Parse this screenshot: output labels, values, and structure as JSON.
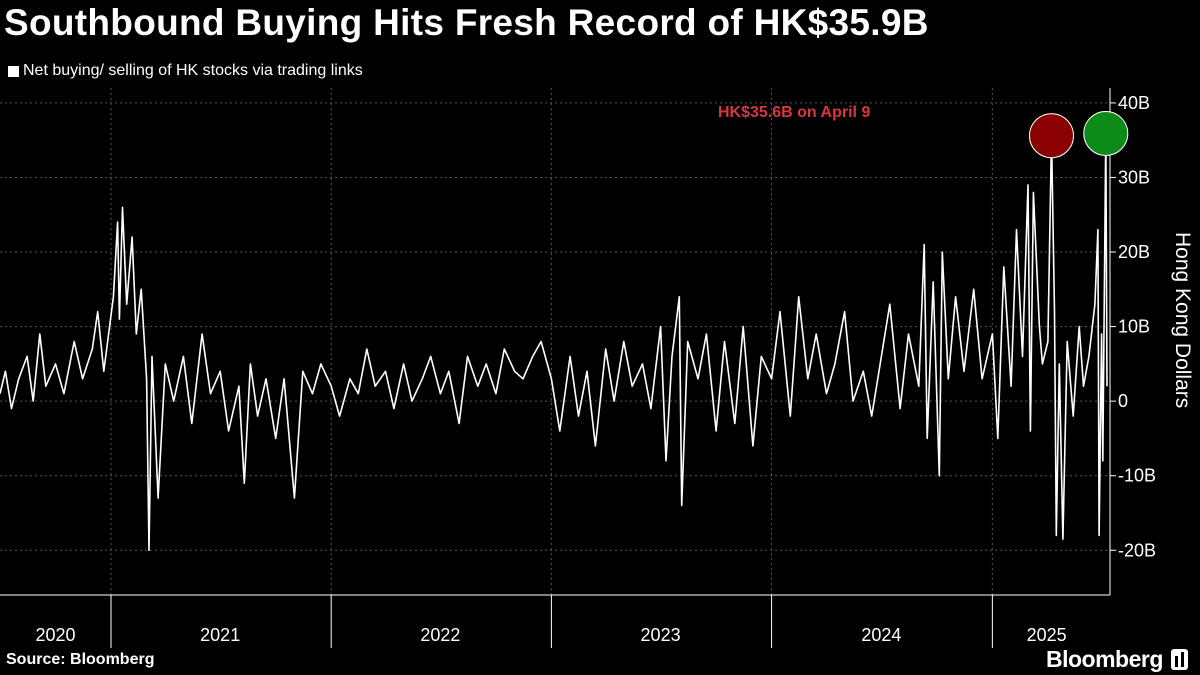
{
  "title": "Southbound Buying Hits Fresh Record of HK$35.9B",
  "source": "Source: Bloomberg",
  "brand": "Bloomberg",
  "colors": {
    "background": "#000000",
    "series": "#ffffff",
    "grid": "#555555",
    "marker_prev": "#8b0000",
    "marker_new": "#0d8a17",
    "annotation": "#d9363e"
  },
  "chart_data": {
    "type": "line",
    "legend": {
      "placement": "top-left",
      "entries": [
        "Net buying/ selling of HK stocks via trading links"
      ]
    },
    "ylabel": "Hong Kong Dollars",
    "y_unit": "HK$ billions",
    "ylim": [
      -26,
      42
    ],
    "yticks": [
      -20,
      -10,
      0,
      10,
      20,
      30,
      40
    ],
    "ytick_labels": [
      "-20B",
      "-10B",
      "0",
      "10B",
      "20B",
      "30B",
      "40B"
    ],
    "xlim": [
      "2020-07-01",
      "2025-07-15"
    ],
    "year_boundaries": [
      "2021-01-01",
      "2022-01-01",
      "2023-01-01",
      "2024-01-01",
      "2025-01-01"
    ],
    "x_tick_labels": [
      {
        "label": "2020",
        "date": "2020-10-01"
      },
      {
        "label": "2021",
        "date": "2021-07-01"
      },
      {
        "label": "2022",
        "date": "2022-07-01"
      },
      {
        "label": "2023",
        "date": "2023-07-01"
      },
      {
        "label": "2024",
        "date": "2024-07-01"
      },
      {
        "label": "2025",
        "date": "2025-04-01"
      }
    ],
    "grid": true,
    "series": [
      {
        "name": "Net buying/ selling of HK stocks via trading links",
        "points": [
          [
            "2020-07-01",
            1
          ],
          [
            "2020-07-10",
            4
          ],
          [
            "2020-07-20",
            -1
          ],
          [
            "2020-08-01",
            3
          ],
          [
            "2020-08-15",
            6
          ],
          [
            "2020-08-25",
            0
          ],
          [
            "2020-09-05",
            9
          ],
          [
            "2020-09-15",
            2
          ],
          [
            "2020-10-01",
            5
          ],
          [
            "2020-10-15",
            1
          ],
          [
            "2020-11-01",
            8
          ],
          [
            "2020-11-15",
            3
          ],
          [
            "2020-12-01",
            7
          ],
          [
            "2020-12-10",
            12
          ],
          [
            "2020-12-20",
            4
          ],
          [
            "2021-01-05",
            14
          ],
          [
            "2021-01-12",
            24
          ],
          [
            "2021-01-15",
            11
          ],
          [
            "2021-01-20",
            26
          ],
          [
            "2021-01-27",
            13
          ],
          [
            "2021-02-05",
            22
          ],
          [
            "2021-02-12",
            9
          ],
          [
            "2021-02-20",
            15
          ],
          [
            "2021-03-01",
            3
          ],
          [
            "2021-03-05",
            -20
          ],
          [
            "2021-03-10",
            6
          ],
          [
            "2021-03-20",
            -13
          ],
          [
            "2021-04-01",
            5
          ],
          [
            "2021-04-15",
            0
          ],
          [
            "2021-05-01",
            6
          ],
          [
            "2021-05-15",
            -3
          ],
          [
            "2021-06-01",
            9
          ],
          [
            "2021-06-15",
            1
          ],
          [
            "2021-07-01",
            4
          ],
          [
            "2021-07-15",
            -4
          ],
          [
            "2021-08-01",
            2
          ],
          [
            "2021-08-10",
            -11
          ],
          [
            "2021-08-20",
            5
          ],
          [
            "2021-09-01",
            -2
          ],
          [
            "2021-09-15",
            3
          ],
          [
            "2021-10-01",
            -5
          ],
          [
            "2021-10-15",
            3
          ],
          [
            "2021-11-01",
            -13
          ],
          [
            "2021-11-15",
            4
          ],
          [
            "2021-12-01",
            1
          ],
          [
            "2021-12-15",
            5
          ],
          [
            "2022-01-01",
            2
          ],
          [
            "2022-01-15",
            -2
          ],
          [
            "2022-02-01",
            3
          ],
          [
            "2022-02-15",
            1
          ],
          [
            "2022-03-01",
            7
          ],
          [
            "2022-03-15",
            2
          ],
          [
            "2022-04-01",
            4
          ],
          [
            "2022-04-15",
            -1
          ],
          [
            "2022-05-01",
            5
          ],
          [
            "2022-05-15",
            0
          ],
          [
            "2022-06-01",
            3
          ],
          [
            "2022-06-15",
            6
          ],
          [
            "2022-07-01",
            1
          ],
          [
            "2022-07-15",
            4
          ],
          [
            "2022-08-01",
            -3
          ],
          [
            "2022-08-15",
            6
          ],
          [
            "2022-09-01",
            2
          ],
          [
            "2022-09-15",
            5
          ],
          [
            "2022-10-01",
            1
          ],
          [
            "2022-10-15",
            7
          ],
          [
            "2022-11-01",
            4
          ],
          [
            "2022-11-15",
            3
          ],
          [
            "2022-12-01",
            6
          ],
          [
            "2022-12-15",
            8
          ],
          [
            "2023-01-01",
            3
          ],
          [
            "2023-01-15",
            -4
          ],
          [
            "2023-02-01",
            6
          ],
          [
            "2023-02-15",
            -2
          ],
          [
            "2023-03-01",
            4
          ],
          [
            "2023-03-15",
            -6
          ],
          [
            "2023-04-01",
            7
          ],
          [
            "2023-04-15",
            0
          ],
          [
            "2023-05-01",
            8
          ],
          [
            "2023-05-15",
            2
          ],
          [
            "2023-06-01",
            5
          ],
          [
            "2023-06-15",
            -1
          ],
          [
            "2023-07-01",
            10
          ],
          [
            "2023-07-10",
            -8
          ],
          [
            "2023-07-20",
            6
          ],
          [
            "2023-08-01",
            14
          ],
          [
            "2023-08-05",
            -14
          ],
          [
            "2023-08-15",
            8
          ],
          [
            "2023-09-01",
            3
          ],
          [
            "2023-09-15",
            9
          ],
          [
            "2023-10-01",
            -4
          ],
          [
            "2023-10-15",
            8
          ],
          [
            "2023-11-01",
            -3
          ],
          [
            "2023-11-15",
            10
          ],
          [
            "2023-12-01",
            -6
          ],
          [
            "2023-12-15",
            6
          ],
          [
            "2024-01-01",
            3
          ],
          [
            "2024-01-15",
            12
          ],
          [
            "2024-02-01",
            -2
          ],
          [
            "2024-02-15",
            14
          ],
          [
            "2024-03-01",
            3
          ],
          [
            "2024-03-15",
            9
          ],
          [
            "2024-04-01",
            1
          ],
          [
            "2024-04-15",
            5
          ],
          [
            "2024-05-01",
            12
          ],
          [
            "2024-05-15",
            0
          ],
          [
            "2024-06-01",
            4
          ],
          [
            "2024-06-15",
            -2
          ],
          [
            "2024-07-01",
            6
          ],
          [
            "2024-07-15",
            13
          ],
          [
            "2024-08-01",
            -1
          ],
          [
            "2024-08-15",
            9
          ],
          [
            "2024-09-01",
            2
          ],
          [
            "2024-09-10",
            21
          ],
          [
            "2024-09-15",
            -5
          ],
          [
            "2024-09-25",
            16
          ],
          [
            "2024-10-05",
            -10
          ],
          [
            "2024-10-10",
            20
          ],
          [
            "2024-10-20",
            3
          ],
          [
            "2024-11-01",
            14
          ],
          [
            "2024-11-15",
            4
          ],
          [
            "2024-12-01",
            15
          ],
          [
            "2024-12-15",
            3
          ],
          [
            "2025-01-01",
            9
          ],
          [
            "2025-01-10",
            -5
          ],
          [
            "2025-01-20",
            18
          ],
          [
            "2025-02-01",
            2
          ],
          [
            "2025-02-10",
            23
          ],
          [
            "2025-02-20",
            6
          ],
          [
            "2025-03-01",
            29
          ],
          [
            "2025-03-05",
            -4
          ],
          [
            "2025-03-10",
            28
          ],
          [
            "2025-03-20",
            10
          ],
          [
            "2025-03-25",
            5
          ],
          [
            "2025-04-03",
            8
          ],
          [
            "2025-04-09",
            35.6
          ],
          [
            "2025-04-14",
            12
          ],
          [
            "2025-04-17",
            -18
          ],
          [
            "2025-04-22",
            5
          ],
          [
            "2025-04-28",
            -18.5
          ],
          [
            "2025-05-05",
            8
          ],
          [
            "2025-05-15",
            -2
          ],
          [
            "2025-05-25",
            10
          ],
          [
            "2025-06-01",
            2
          ],
          [
            "2025-06-10",
            6
          ],
          [
            "2025-06-20",
            13
          ],
          [
            "2025-06-25",
            23
          ],
          [
            "2025-06-27",
            -18
          ],
          [
            "2025-07-01",
            9
          ],
          [
            "2025-07-03",
            -8
          ],
          [
            "2025-07-08",
            35.9
          ],
          [
            "2025-07-10",
            2
          ]
        ]
      }
    ],
    "highlights": [
      {
        "date": "2025-04-09",
        "value": 35.6,
        "color": "#8b0000",
        "label": "HK$35.6B on April 9"
      },
      {
        "date": "2025-07-08",
        "value": 35.9,
        "color": "#0d8a17",
        "label": ""
      }
    ]
  }
}
